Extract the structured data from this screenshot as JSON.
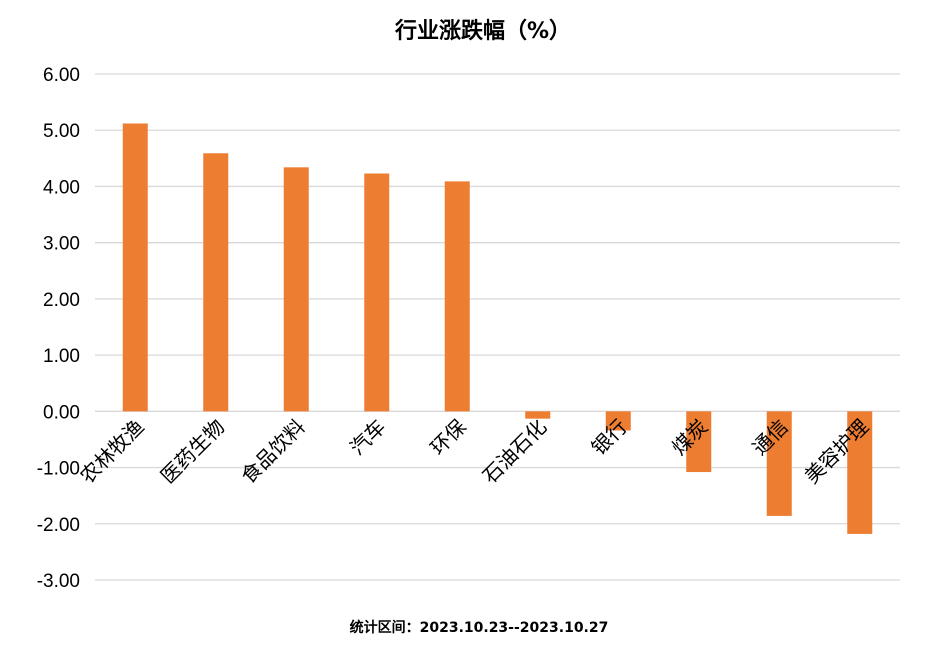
{
  "chart_data": {
    "type": "bar",
    "title": "行业涨跌幅（%）",
    "categories": [
      "农林牧渔",
      "医药生物",
      "食品饮料",
      "汽车",
      "环保",
      "石油石化",
      "银行",
      "煤炭",
      "通信",
      "美容护理"
    ],
    "values": [
      5.12,
      4.59,
      4.34,
      4.23,
      4.09,
      -0.13,
      -0.34,
      -1.08,
      -1.86,
      -2.18
    ],
    "ylim": [
      -3,
      6
    ],
    "yticks": [
      "6.00",
      "5.00",
      "4.00",
      "3.00",
      "2.00",
      "1.00",
      "0.00",
      "-1.00",
      "-2.00",
      "-3.00"
    ],
    "bar_color": "#ED7D31",
    "grid": true,
    "xlabel": "",
    "ylabel": ""
  },
  "footer": "统计区间：2023.10.23--2023.10.27"
}
